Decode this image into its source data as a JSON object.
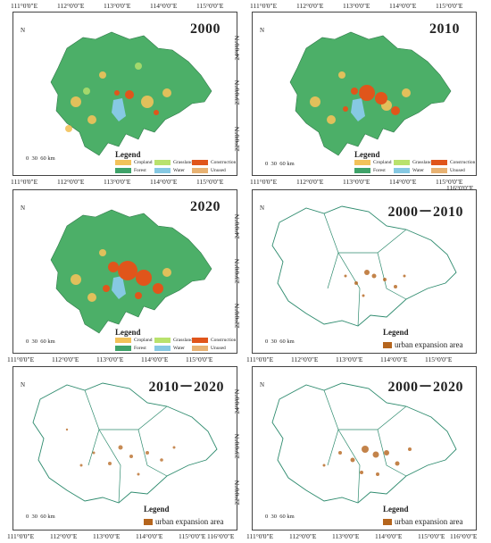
{
  "lon_labels_top": [
    "111°0'0\"E",
    "112°0'0\"E",
    "113°0'0\"E",
    "114°0'0\"E",
    "115°0'0\"E"
  ],
  "lon_labels_bottom_full": [
    "111°0'0\"E",
    "112°0'0\"E",
    "113°0'0\"E",
    "114°0'0\"E",
    "115°0'0\"E",
    "116°0'0\"E"
  ],
  "lat_labels": [
    "24°0'0\"N",
    "23°0'0\"N",
    "22°0'0\"N"
  ],
  "panels": {
    "p2000": {
      "title": "2000"
    },
    "p2010": {
      "title": "2010"
    },
    "p2020": {
      "title": "2020"
    },
    "p0010": {
      "title": "2000－2010"
    },
    "p1020": {
      "title": "2010－2020"
    },
    "p0020": {
      "title": "2000－2020"
    }
  },
  "legend": {
    "title": "Legend",
    "items": [
      {
        "label": "Cropland",
        "color": "#f2c25a"
      },
      {
        "label": "Grassland",
        "color": "#b9e26d"
      },
      {
        "label": "Construction",
        "color": "#e0551b"
      },
      {
        "label": "Forest",
        "color": "#3fa36a"
      },
      {
        "label": "Water",
        "color": "#86c9e3"
      },
      {
        "label": "Unused",
        "color": "#e8b272"
      }
    ]
  },
  "expansion_legend": {
    "title": "Legend",
    "label": "urban expansion area",
    "color": "#b5651d"
  },
  "scale": {
    "labels": [
      "0",
      "30",
      "60 km"
    ]
  },
  "north": {
    "label": "N"
  }
}
